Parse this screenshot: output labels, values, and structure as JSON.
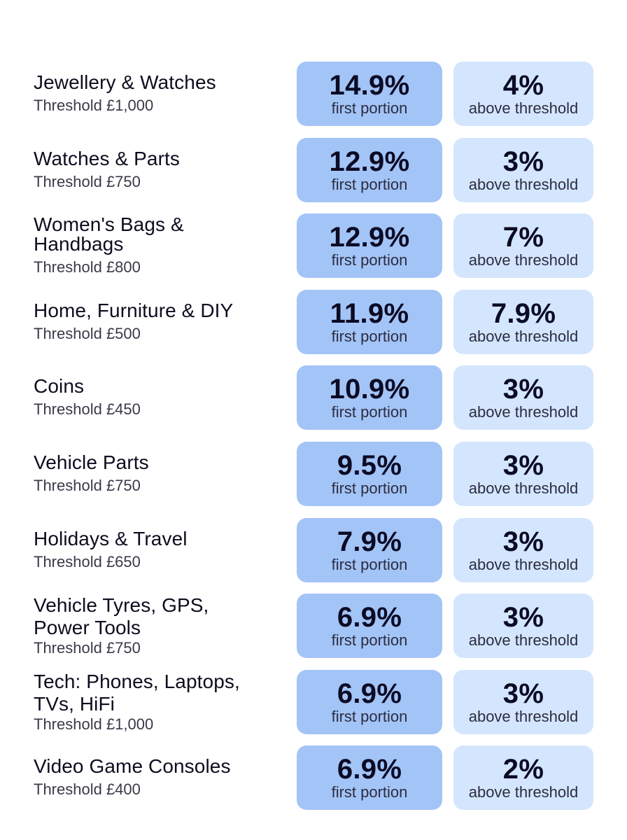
{
  "rows": [
    {
      "name": "Jewellery & Watches",
      "threshold": "Threshold £1,000",
      "first_rate": "14.9%",
      "first_label": "first portion",
      "above_rate": "4%",
      "above_label": "above threshold"
    },
    {
      "name": "Watches & Parts",
      "threshold": "Threshold £750",
      "first_rate": "12.9%",
      "first_label": "first portion",
      "above_rate": "3%",
      "above_label": "above threshold"
    },
    {
      "name": "Women's Bags & Handbags",
      "threshold": "Threshold £800",
      "first_rate": "12.9%",
      "first_label": "first portion",
      "above_rate": "7%",
      "above_label": "above threshold"
    },
    {
      "name": "Home, Furniture & DIY",
      "threshold": "Threshold £500",
      "first_rate": "11.9%",
      "first_label": "first portion",
      "above_rate": "7.9%",
      "above_label": "above threshold"
    },
    {
      "name": "Coins",
      "threshold": "Threshold £450",
      "first_rate": "10.9%",
      "first_label": "first portion",
      "above_rate": "3%",
      "above_label": "above threshold"
    },
    {
      "name": "Vehicle Parts",
      "threshold": "Threshold £750",
      "first_rate": "9.5%",
      "first_label": "first portion",
      "above_rate": "3%",
      "above_label": "above threshold"
    },
    {
      "name": "Holidays & Travel",
      "threshold": "Threshold £650",
      "first_rate": "7.9%",
      "first_label": "first portion",
      "above_rate": "3%",
      "above_label": "above threshold"
    },
    {
      "name": "Vehicle Tyres, GPS, Power Tools",
      "threshold": "Threshold £750",
      "first_rate": "6.9%",
      "first_label": "first portion",
      "above_rate": "3%",
      "above_label": "above threshold"
    },
    {
      "name": "Tech: Phones, Laptops, TVs, HiFi",
      "threshold": "Threshold £1,000",
      "first_rate": "6.9%",
      "first_label": "first portion",
      "above_rate": "3%",
      "above_label": "above threshold"
    },
    {
      "name": "Video Game Consoles",
      "threshold": "Threshold £400",
      "first_rate": "6.9%",
      "first_label": "first portion",
      "above_rate": "2%",
      "above_label": "above threshold"
    }
  ],
  "colors": {
    "first_box": "#a3c4f7",
    "above_box": "#d4e6fd",
    "text": "#0d0d1f"
  }
}
